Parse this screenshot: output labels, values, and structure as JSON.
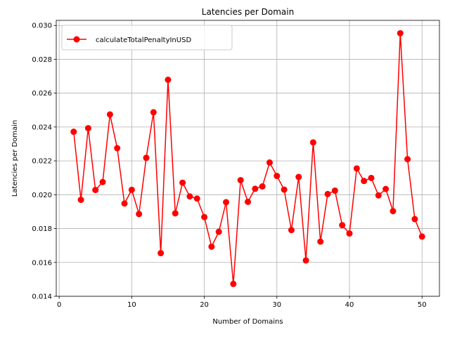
{
  "chart_data": {
    "type": "line",
    "title": "Latencies per Domain",
    "xlabel": "Number of Domains",
    "ylabel": "Latencies per Domain",
    "xlim": [
      -0.4,
      52.4
    ],
    "ylim": [
      0.014,
      0.0303
    ],
    "x_ticks": [
      0,
      10,
      20,
      30,
      40,
      50
    ],
    "y_ticks": [
      0.014,
      0.016,
      0.018,
      0.02,
      0.022,
      0.024,
      0.026,
      0.028,
      0.03
    ],
    "x_tick_labels": [
      "0",
      "10",
      "20",
      "30",
      "40",
      "50"
    ],
    "y_tick_labels": [
      "0.014",
      "0.016",
      "0.018",
      "0.020",
      "0.022",
      "0.024",
      "0.026",
      "0.028",
      "0.030"
    ],
    "grid": true,
    "legend_position": "top-left",
    "series": [
      {
        "name": "calculateTotalPenaltyInUSD",
        "color": "#ff0000",
        "marker": "circle",
        "x": [
          2,
          3,
          4,
          5,
          6,
          7,
          8,
          9,
          10,
          11,
          12,
          13,
          14,
          15,
          16,
          17,
          18,
          19,
          20,
          21,
          22,
          23,
          24,
          25,
          26,
          27,
          28,
          29,
          30,
          31,
          32,
          33,
          34,
          35,
          36,
          37,
          38,
          39,
          40,
          41,
          42,
          43,
          44,
          45,
          46,
          47,
          48,
          49,
          50
        ],
        "y": [
          0.02372,
          0.0197,
          0.02393,
          0.02028,
          0.02075,
          0.02474,
          0.02275,
          0.01948,
          0.02029,
          0.01886,
          0.02218,
          0.02487,
          0.01655,
          0.02679,
          0.0189,
          0.02071,
          0.0199,
          0.01977,
          0.01868,
          0.01693,
          0.01781,
          0.01956,
          0.01473,
          0.02086,
          0.01958,
          0.02035,
          0.02049,
          0.0219,
          0.02111,
          0.0203,
          0.01791,
          0.02105,
          0.01612,
          0.02309,
          0.01723,
          0.02004,
          0.02024,
          0.0182,
          0.01771,
          0.02155,
          0.02081,
          0.02099,
          0.01996,
          0.02034,
          0.01903,
          0.02954,
          0.0221,
          0.01856,
          0.01753
        ]
      }
    ]
  }
}
